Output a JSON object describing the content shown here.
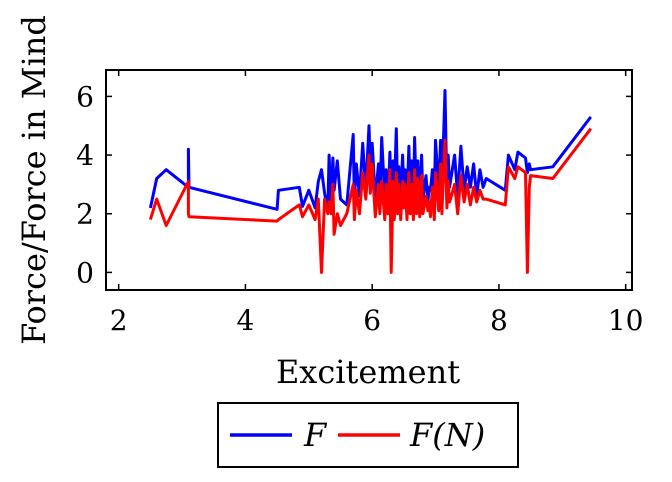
{
  "chart_data": {
    "type": "line",
    "xlabel": "Excitement",
    "ylabel": "Force/Force in Mind",
    "xlim": [
      1.8,
      10.1
    ],
    "ylim": [
      -0.6,
      6.9
    ],
    "xticks": [
      2,
      4,
      6,
      8,
      10
    ],
    "yticks": [
      0,
      2,
      4,
      6
    ],
    "grid": false,
    "legend_position": "bottom-center",
    "series": [
      {
        "name": "F",
        "color": "#0000ff",
        "x": [
          2.5,
          2.6,
          2.75,
          3.1,
          3.1,
          3.11,
          4.5,
          4.52,
          4.85,
          4.9,
          5.0,
          5.1,
          5.15,
          5.2,
          5.25,
          5.3,
          5.32,
          5.35,
          5.38,
          5.4,
          5.45,
          5.5,
          5.6,
          5.7,
          5.72,
          5.75,
          5.8,
          5.85,
          5.9,
          5.95,
          5.97,
          6.0,
          6.05,
          6.1,
          6.12,
          6.15,
          6.2,
          6.22,
          6.25,
          6.28,
          6.3,
          6.33,
          6.35,
          6.38,
          6.4,
          6.42,
          6.45,
          6.48,
          6.5,
          6.52,
          6.55,
          6.58,
          6.6,
          6.62,
          6.65,
          6.67,
          6.7,
          6.72,
          6.75,
          6.78,
          6.8,
          6.85,
          6.88,
          6.9,
          6.92,
          6.95,
          6.98,
          7.0,
          7.05,
          7.08,
          7.1,
          7.12,
          7.15,
          7.18,
          7.2,
          7.22,
          7.25,
          7.3,
          7.35,
          7.4,
          7.45,
          7.5,
          7.55,
          7.6,
          7.65,
          7.7,
          7.75,
          7.8,
          8.1,
          8.15,
          8.25,
          8.3,
          8.42,
          8.45,
          8.48,
          8.5,
          8.85,
          9.45
        ],
        "values": [
          2.2,
          3.2,
          3.5,
          2.9,
          4.2,
          2.9,
          2.15,
          2.8,
          2.9,
          2.25,
          2.8,
          2.2,
          3.1,
          3.5,
          2.7,
          2.1,
          4.0,
          2.3,
          3.9,
          2.8,
          3.8,
          2.5,
          2.3,
          4.7,
          2.4,
          3.7,
          2.6,
          4.4,
          2.8,
          5.0,
          3.6,
          4.4,
          2.5,
          3.7,
          2.3,
          4.6,
          2.5,
          3.5,
          2.3,
          4.1,
          2.2,
          3.8,
          2.7,
          4.9,
          2.8,
          3.6,
          2.6,
          4.0,
          2.9,
          3.5,
          2.5,
          4.3,
          2.4,
          3.8,
          2.3,
          4.6,
          2.5,
          3.8,
          2.3,
          4.0,
          2.5,
          3.3,
          2.4,
          2.9,
          2.8,
          3.5,
          2.5,
          4.5,
          2.8,
          4.5,
          2.6,
          4.1,
          6.2,
          2.7,
          4.0,
          2.9,
          3.3,
          4.0,
          2.6,
          4.3,
          2.8,
          3.6,
          2.9,
          3.7,
          2.6,
          3.5,
          2.9,
          3.2,
          2.8,
          4.0,
          3.5,
          4.1,
          3.9,
          3.4,
          3.7,
          3.5,
          3.6,
          5.3
        ]
      },
      {
        "name": "F(N)",
        "color": "#ff0000",
        "x": [
          2.5,
          2.6,
          2.75,
          3.1,
          3.1,
          3.11,
          4.5,
          4.52,
          4.85,
          4.9,
          5.0,
          5.1,
          5.15,
          5.2,
          5.25,
          5.3,
          5.32,
          5.35,
          5.38,
          5.4,
          5.45,
          5.5,
          5.6,
          5.7,
          5.72,
          5.75,
          5.8,
          5.85,
          5.9,
          5.95,
          5.97,
          6.0,
          6.05,
          6.1,
          6.12,
          6.15,
          6.2,
          6.22,
          6.25,
          6.28,
          6.3,
          6.33,
          6.35,
          6.38,
          6.4,
          6.42,
          6.45,
          6.48,
          6.5,
          6.52,
          6.55,
          6.58,
          6.6,
          6.62,
          6.65,
          6.67,
          6.7,
          6.72,
          6.75,
          6.78,
          6.8,
          6.85,
          6.88,
          6.9,
          6.92,
          6.95,
          6.98,
          7.0,
          7.05,
          7.08,
          7.1,
          7.12,
          7.15,
          7.18,
          7.2,
          7.22,
          7.25,
          7.3,
          7.35,
          7.4,
          7.45,
          7.5,
          7.55,
          7.6,
          7.65,
          7.7,
          7.75,
          7.8,
          8.1,
          8.15,
          8.25,
          8.3,
          8.42,
          8.45,
          8.48,
          8.5,
          8.85,
          9.45
        ],
        "values": [
          1.8,
          2.5,
          1.6,
          3.1,
          2.0,
          1.9,
          1.75,
          1.8,
          2.3,
          1.9,
          2.3,
          1.8,
          2.5,
          0.0,
          2.5,
          2.0,
          2.4,
          2.0,
          3.0,
          1.3,
          2.0,
          1.6,
          2.0,
          3.0,
          1.8,
          2.8,
          2.0,
          3.4,
          2.5,
          4.0,
          2.7,
          3.7,
          1.9,
          3.0,
          2.0,
          3.1,
          1.8,
          3.0,
          2.0,
          3.5,
          0.0,
          3.1,
          1.8,
          3.4,
          2.0,
          3.0,
          1.8,
          3.1,
          2.2,
          3.0,
          1.8,
          3.4,
          2.0,
          3.0,
          1.8,
          3.5,
          2.0,
          3.2,
          1.9,
          3.3,
          2.0,
          2.6,
          2.1,
          2.4,
          1.9,
          2.9,
          1.8,
          3.4,
          2.1,
          3.7,
          2.0,
          3.1,
          4.5,
          2.2,
          3.1,
          2.4,
          2.6,
          3.0,
          2.0,
          3.3,
          2.4,
          3.0,
          2.3,
          2.9,
          2.4,
          2.8,
          2.5,
          2.5,
          2.3,
          3.6,
          3.2,
          3.6,
          3.4,
          0.0,
          2.9,
          3.3,
          3.2,
          4.9
        ]
      }
    ]
  }
}
